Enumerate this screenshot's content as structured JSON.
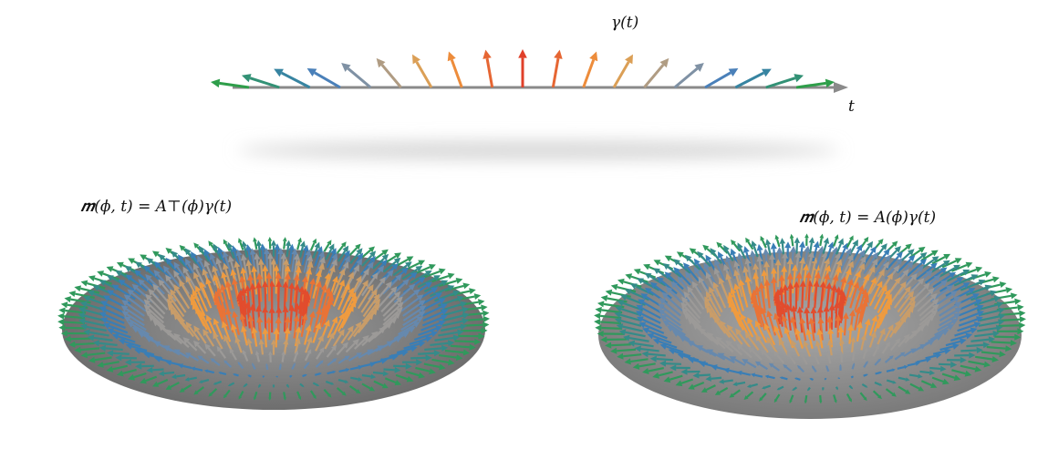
{
  "top": {
    "curve_label": "γ(t)",
    "axis_label": "t"
  },
  "left_panel": {
    "formula": "𝒎(ϕ, t) = A⊤(ϕ)γ(t)"
  },
  "right_panel": {
    "formula": "𝒎(ϕ, t) = A(ϕ)γ(t)"
  }
}
